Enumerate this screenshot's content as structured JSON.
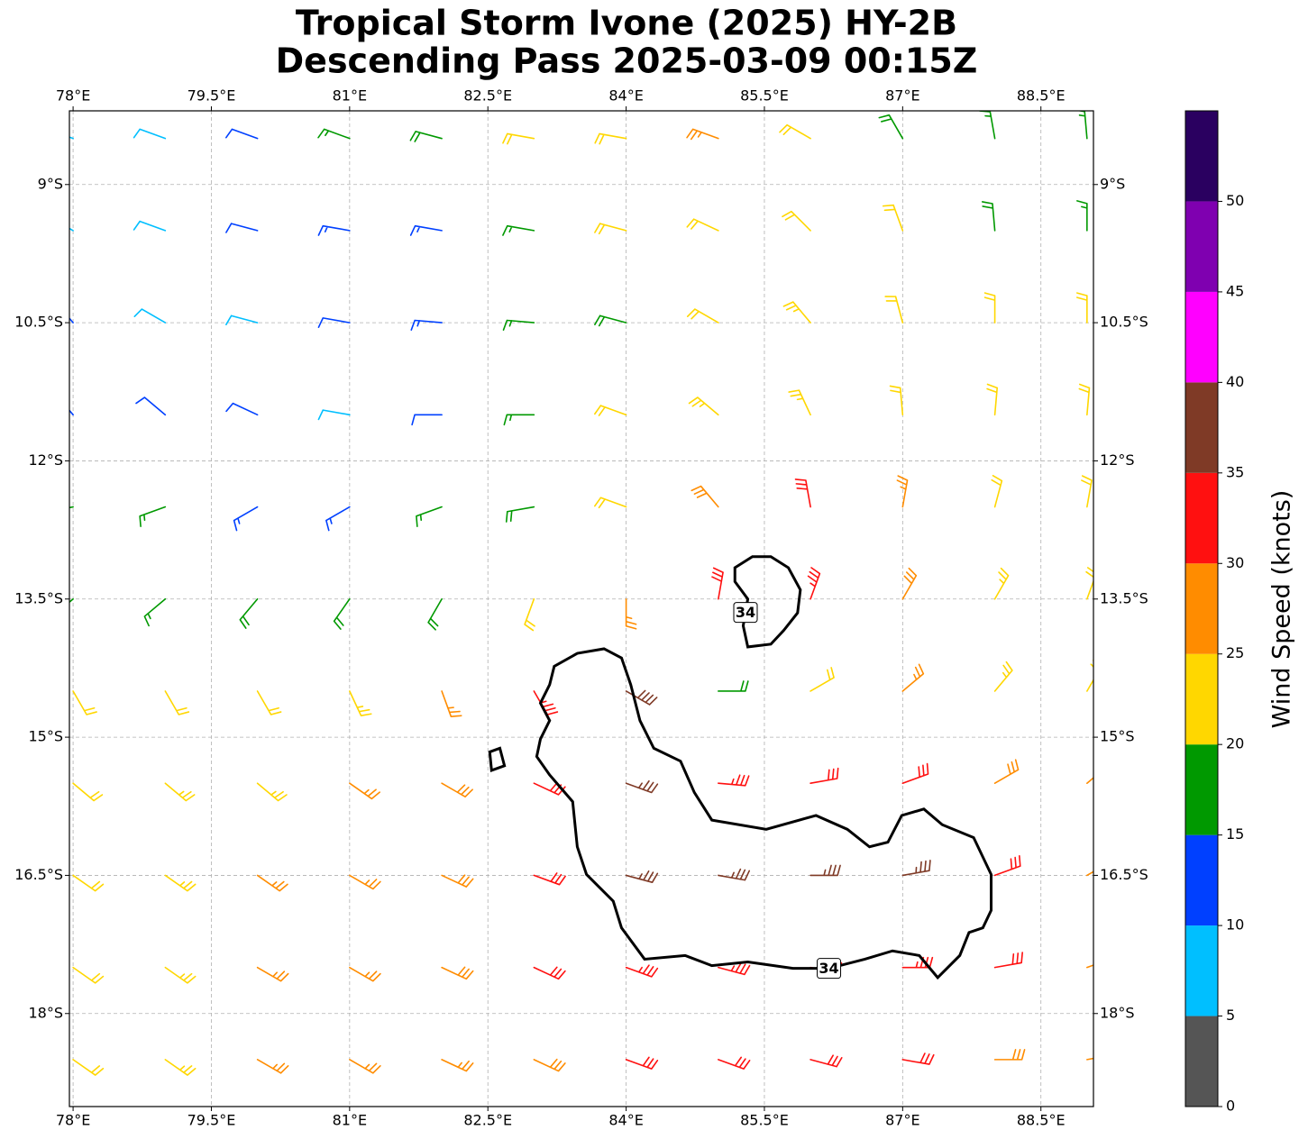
{
  "chart_data": {
    "type": "barbs",
    "title": "Tropical Storm Ivone (2025) HY-2B",
    "subtitle": "Descending Pass 2025-03-09 00:15Z",
    "xlim": [
      77.96,
      89.07
    ],
    "ylim": [
      -19.01,
      -8.2
    ],
    "xticks": [
      {
        "value": 78,
        "label": "78°E"
      },
      {
        "value": 79.5,
        "label": "79.5°E"
      },
      {
        "value": 81,
        "label": "81°E"
      },
      {
        "value": 82.5,
        "label": "82.5°E"
      },
      {
        "value": 84,
        "label": "84°E"
      },
      {
        "value": 85.5,
        "label": "85.5°E"
      },
      {
        "value": 87,
        "label": "87°E"
      },
      {
        "value": 88.5,
        "label": "88.5°E"
      }
    ],
    "yticks": [
      {
        "value": -9,
        "label": "9°S"
      },
      {
        "value": -10.5,
        "label": "10.5°S"
      },
      {
        "value": -12,
        "label": "12°S"
      },
      {
        "value": -13.5,
        "label": "13.5°S"
      },
      {
        "value": -15,
        "label": "15°S"
      },
      {
        "value": -16.5,
        "label": "16.5°S"
      },
      {
        "value": -18,
        "label": "18°S"
      }
    ],
    "grid": true,
    "barbs": {
      "lon": [
        78,
        79,
        80,
        81,
        82,
        83,
        84,
        85,
        86,
        87,
        88,
        89
      ],
      "lat": [
        -8.5,
        -9.5,
        -10.5,
        -11.5,
        -12.5,
        -13.5,
        -14.5,
        -15.5,
        -16.5,
        -17.5,
        -18.5
      ],
      "speed": [
        [
          7,
          8,
          10,
          15,
          18,
          22,
          22,
          25,
          22,
          18,
          17,
          17
        ],
        [
          6,
          8,
          12,
          13,
          14,
          15,
          20,
          22,
          22,
          22,
          18,
          17
        ],
        [
          12,
          8,
          8,
          12,
          13,
          15,
          18,
          22,
          24,
          22,
          22,
          22
        ],
        [
          12,
          12,
          10,
          8,
          12,
          16,
          20,
          24,
          24,
          22,
          22,
          22
        ],
        [
          17,
          17,
          14,
          13,
          15,
          18,
          22,
          28,
          32,
          25,
          22,
          22
        ],
        [
          17,
          17,
          18,
          19,
          18,
          22,
          25,
          32,
          33,
          28,
          24,
          22
        ],
        [
          22,
          22,
          22,
          23,
          25,
          33,
          38,
          18,
          22,
          26,
          24,
          22
        ],
        [
          22,
          23,
          24,
          26,
          28,
          32,
          37,
          34,
          30,
          30,
          28,
          27
        ],
        [
          22,
          23,
          25,
          27,
          28,
          32,
          37,
          37,
          37,
          36,
          32,
          28
        ],
        [
          22,
          24,
          26,
          27,
          28,
          30,
          34,
          34,
          34,
          33,
          30,
          28
        ],
        [
          22,
          23,
          25,
          26,
          27,
          28,
          30,
          32,
          31,
          30,
          28,
          27
        ]
      ],
      "direction": [
        [
          290,
          290,
          290,
          290,
          285,
          280,
          280,
          290,
          300,
          330,
          350,
          355
        ],
        [
          300,
          290,
          285,
          280,
          280,
          280,
          285,
          295,
          315,
          340,
          355,
          0
        ],
        [
          320,
          300,
          285,
          280,
          275,
          275,
          285,
          300,
          320,
          345,
          0,
          0
        ],
        [
          320,
          310,
          295,
          280,
          270,
          270,
          290,
          310,
          335,
          355,
          5,
          5
        ],
        [
          260,
          250,
          240,
          240,
          250,
          260,
          290,
          320,
          350,
          10,
          15,
          10
        ],
        [
          230,
          230,
          220,
          215,
          210,
          200,
          180,
          10,
          20,
          30,
          30,
          20
        ],
        [
          150,
          150,
          150,
          155,
          160,
          150,
          120,
          90,
          60,
          50,
          40,
          30
        ],
        [
          130,
          130,
          130,
          125,
          120,
          115,
          110,
          95,
          80,
          70,
          60,
          50
        ],
        [
          125,
          125,
          125,
          120,
          115,
          110,
          105,
          100,
          90,
          80,
          70,
          60
        ],
        [
          125,
          125,
          120,
          120,
          115,
          115,
          110,
          105,
          100,
          90,
          80,
          70
        ],
        [
          125,
          125,
          120,
          120,
          115,
          115,
          110,
          110,
          105,
          100,
          90,
          80
        ]
      ]
    },
    "contours": {
      "level": 34,
      "color": "#000000",
      "paths": [
        {
          "lon": [
            83.22,
            83.47,
            83.76,
            83.95,
            84.05,
            84.15,
            84.3,
            84.59,
            84.74,
            84.93,
            85.52,
            86.06,
            86.4,
            86.64,
            86.84,
            86.99,
            87.23,
            87.43,
            87.77,
            87.96,
            87.96,
            87.87,
            87.72,
            87.62,
            87.38,
            87.18,
            86.89,
            86.59,
            86.2,
            85.81,
            85.32,
            84.93,
            84.64,
            84.2,
            83.95,
            83.86,
            83.57,
            83.47,
            83.42,
            83.17,
            83.03,
            83.07,
            83.17,
            83.07,
            83.17
          ],
          "lat": [
            -14.23,
            -14.09,
            -14.04,
            -14.14,
            -14.43,
            -14.82,
            -15.12,
            -15.26,
            -15.6,
            -15.9,
            -16.0,
            -15.85,
            -16.0,
            -16.19,
            -16.14,
            -15.85,
            -15.78,
            -15.95,
            -16.09,
            -16.49,
            -16.88,
            -17.07,
            -17.12,
            -17.37,
            -17.61,
            -17.37,
            -17.32,
            -17.41,
            -17.51,
            -17.51,
            -17.44,
            -17.48,
            -17.37,
            -17.41,
            -17.07,
            -16.78,
            -16.49,
            -16.19,
            -15.7,
            -15.41,
            -15.21,
            -15.02,
            -14.82,
            -14.63,
            -14.43
          ]
        },
        {
          "lon": [
            85.18,
            85.37,
            85.57,
            85.76,
            85.89,
            85.86,
            85.71,
            85.57,
            85.32,
            85.27,
            85.32,
            85.18
          ],
          "lat": [
            -13.16,
            -13.04,
            -13.04,
            -13.16,
            -13.4,
            -13.65,
            -13.84,
            -13.99,
            -14.02,
            -13.79,
            -13.5,
            -13.31
          ]
        },
        {
          "lon": [
            82.52,
            82.63,
            82.68,
            82.54
          ],
          "lat": [
            -15.16,
            -15.12,
            -15.31,
            -15.36
          ]
        }
      ]
    },
    "colorbar": {
      "label": "Wind Speed (knots)",
      "bounds": [
        0,
        5,
        10,
        15,
        20,
        25,
        30,
        35,
        40,
        45,
        50,
        55
      ],
      "colors": [
        "#555555",
        "#00bfff",
        "#0040ff",
        "#009900",
        "#ffd700",
        "#ff8c00",
        "#ff1010",
        "#7f3a26",
        "#ff00ff",
        "#7f00b0",
        "#2a0060"
      ],
      "ticks": [
        0,
        5,
        10,
        15,
        20,
        25,
        30,
        35,
        40,
        45,
        50
      ]
    }
  }
}
